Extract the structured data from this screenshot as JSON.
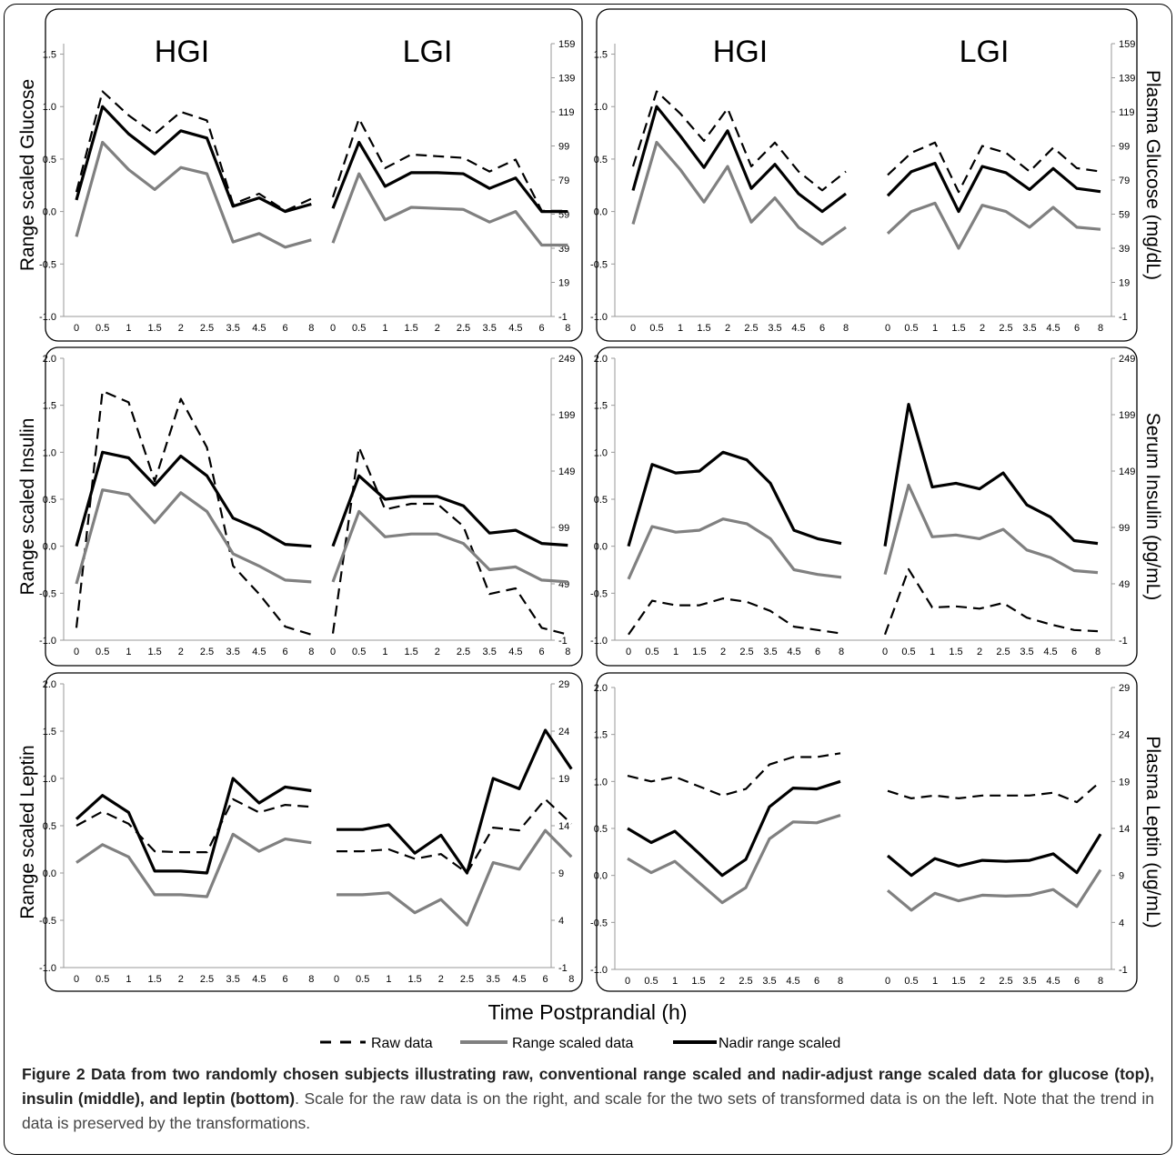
{
  "x_axis_title": "Time Postprandial (h)",
  "legend": [
    {
      "label": "Raw data",
      "style": "dashed",
      "color": "#000000"
    },
    {
      "label": "Range scaled data",
      "style": "solid",
      "color": "#808080"
    },
    {
      "label": "Nadir range scaled",
      "style": "solid",
      "color": "#000000"
    }
  ],
  "caption": {
    "bold": "Figure 2 Data from two randomly chosen subjects illustrating raw, conventional range scaled and nadir-adjust range scaled data for glucose (top), insulin (middle), and leptin (bottom)",
    "text": ". Scale for the raw data is on the right, and scale for the two sets of transformed data is on the left. Note that the trend in data is preserved by the transformations."
  },
  "colors": {
    "raw": "#000000",
    "range": "#808080",
    "nadir": "#000000"
  },
  "chart_data": [
    {
      "type": "line",
      "id": "glucose-subject-1",
      "group_titles": [
        "HGI",
        "LGI"
      ],
      "ylabel_left": "Range scaled Glucose",
      "ylabel_right": "",
      "groups_x": [
        "0",
        "0.5",
        "1",
        "1.5",
        "2",
        "2.5",
        "3.5",
        "4.5",
        "6",
        "8"
      ],
      "left_axis": {
        "ticks": [
          "-1.0",
          "-0.5",
          "0.0",
          "0.5",
          "1.0",
          "1.5"
        ],
        "range": [
          -1.0,
          1.6
        ]
      },
      "right_axis": {
        "ticks": [
          "-1",
          "19",
          "39",
          "59",
          "79",
          "99",
          "119",
          "139",
          "159"
        ],
        "range": [
          -1,
          159
        ]
      },
      "series": [
        {
          "name": "Raw data",
          "axis": "right",
          "groups": [
            [
              72,
              131,
              117,
              106,
              119,
              114,
              65,
              71,
              61,
              68
            ],
            [
              69,
              115,
              86,
              94,
              93,
              92,
              84,
              91,
              61,
              61
            ]
          ]
        },
        {
          "name": "Range scaled data",
          "axis": "left",
          "groups": [
            [
              -0.24,
              0.66,
              0.4,
              0.21,
              0.42,
              0.36,
              -0.29,
              -0.21,
              -0.34,
              -0.27
            ],
            [
              -0.3,
              0.36,
              -0.08,
              0.04,
              0.03,
              0.02,
              -0.1,
              0.0,
              -0.32,
              -0.32
            ]
          ]
        },
        {
          "name": "Nadir range scaled",
          "axis": "left",
          "groups": [
            [
              0.11,
              1.0,
              0.74,
              0.55,
              0.77,
              0.7,
              0.05,
              0.13,
              0.0,
              0.07
            ],
            [
              0.03,
              0.66,
              0.24,
              0.37,
              0.37,
              0.36,
              0.22,
              0.32,
              0.0,
              0.0
            ]
          ]
        }
      ]
    },
    {
      "type": "line",
      "id": "glucose-subject-2",
      "group_titles": [
        "HGI",
        "LGI"
      ],
      "ylabel_left": "",
      "ylabel_right": "Plasma Glucose (mg/dL)",
      "groups_x": [
        "0",
        "0.5",
        "1",
        "1.5",
        "2",
        "2.5",
        "3.5",
        "4.5",
        "6",
        "8"
      ],
      "left_axis": {
        "ticks": [
          "-1.0",
          "-0.5",
          "0.0",
          "0.5",
          "1.0",
          "1.5"
        ],
        "range": [
          -1.0,
          1.6
        ]
      },
      "right_axis": {
        "ticks": [
          "-1",
          "19",
          "39",
          "59",
          "79",
          "99",
          "119",
          "139",
          "159"
        ],
        "range": [
          -1,
          159
        ]
      },
      "series": [
        {
          "name": "Raw data",
          "axis": "right",
          "groups": [
            [
              87,
              131,
              118,
              102,
              121,
              87,
              101,
              84,
              73,
              84
            ],
            [
              82,
              95,
              101,
              72,
              99,
              95,
              84,
              98,
              86,
              84
            ]
          ]
        },
        {
          "name": "Range scaled data",
          "axis": "left",
          "groups": [
            [
              -0.12,
              0.66,
              0.4,
              0.09,
              0.43,
              -0.1,
              0.13,
              -0.15,
              -0.31,
              -0.15
            ],
            [
              -0.21,
              0.0,
              0.08,
              -0.35,
              0.06,
              0.0,
              -0.15,
              0.04,
              -0.15,
              -0.17
            ]
          ]
        },
        {
          "name": "Nadir range scaled",
          "axis": "left",
          "groups": [
            [
              0.2,
              1.0,
              0.72,
              0.42,
              0.77,
              0.22,
              0.45,
              0.17,
              0.0,
              0.17
            ],
            [
              0.15,
              0.38,
              0.46,
              0.0,
              0.43,
              0.37,
              0.21,
              0.41,
              0.22,
              0.19
            ]
          ]
        }
      ]
    },
    {
      "type": "line",
      "id": "insulin-subject-1",
      "group_titles": [],
      "ylabel_left": "Range scaled Insulin",
      "ylabel_right": "",
      "groups_x": [
        "0",
        "0.5",
        "1",
        "1.5",
        "2",
        "2.5",
        "3.5",
        "4.5",
        "6",
        "8"
      ],
      "left_axis": {
        "ticks": [
          "-1.0",
          "-0.5",
          "0.0",
          "0.5",
          "1.0",
          "1.5",
          "2.0"
        ],
        "range": [
          -1.0,
          2.0
        ]
      },
      "right_axis": {
        "ticks": [
          "-1",
          "49",
          "99",
          "149",
          "199",
          "249"
        ],
        "range": [
          -1,
          249
        ]
      },
      "series": [
        {
          "name": "Raw data",
          "axis": "right",
          "groups": [
            [
              10,
              220,
              210,
              140,
              213,
              170,
              65,
              40,
              11,
              4
            ],
            [
              5,
              170,
              115,
              120,
              120,
              100,
              40,
              45,
              10,
              4
            ]
          ]
        },
        {
          "name": "Range scaled data",
          "axis": "left",
          "groups": [
            [
              -0.4,
              0.6,
              0.55,
              0.25,
              0.57,
              0.37,
              -0.08,
              -0.21,
              -0.36,
              -0.38
            ],
            [
              -0.38,
              0.37,
              0.1,
              0.13,
              0.13,
              0.03,
              -0.25,
              -0.22,
              -0.36,
              -0.38
            ]
          ]
        },
        {
          "name": "Nadir range scaled",
          "axis": "left",
          "groups": [
            [
              0.0,
              1.0,
              0.94,
              0.65,
              0.96,
              0.75,
              0.3,
              0.18,
              0.02,
              0.0
            ],
            [
              0.0,
              0.75,
              0.5,
              0.53,
              0.53,
              0.43,
              0.14,
              0.17,
              0.03,
              0.01
            ]
          ]
        }
      ]
    },
    {
      "type": "line",
      "id": "insulin-subject-2",
      "group_titles": [],
      "ylabel_left": "",
      "ylabel_right": "Serum Insulin (pg/mL)",
      "groups_x": [
        "0",
        "0.5",
        "1",
        "1.5",
        "2",
        "2.5",
        "3.5",
        "4.5",
        "6",
        "8"
      ],
      "left_axis": {
        "ticks": [
          "-1.0",
          "-0.5",
          "0.0",
          "0.5",
          "1.0",
          "1.5",
          "2.0"
        ],
        "range": [
          -1.0,
          2.0
        ]
      },
      "right_axis": {
        "ticks": [
          "-1",
          "49",
          "99",
          "149",
          "199",
          "249"
        ],
        "range": [
          -1,
          249
        ]
      },
      "series": [
        {
          "name": "Raw data",
          "axis": "right",
          "groups": [
            [
              4,
              34,
              30,
              30,
              36,
              33,
              25,
              11,
              8,
              5
            ],
            [
              4,
              62,
              28,
              29,
              27,
              32,
              19,
              13,
              8,
              7
            ]
          ]
        },
        {
          "name": "Range scaled data",
          "axis": "left",
          "groups": [
            [
              -0.35,
              0.21,
              0.15,
              0.17,
              0.29,
              0.24,
              0.08,
              -0.25,
              -0.3,
              -0.33
            ],
            [
              -0.3,
              0.65,
              0.1,
              0.12,
              0.08,
              0.18,
              -0.04,
              -0.12,
              -0.26,
              -0.28
            ]
          ]
        },
        {
          "name": "Nadir range scaled",
          "axis": "left",
          "groups": [
            [
              0.0,
              0.87,
              0.78,
              0.8,
              1.0,
              0.92,
              0.67,
              0.17,
              0.08,
              0.03
            ],
            [
              0.0,
              1.51,
              0.63,
              0.67,
              0.61,
              0.78,
              0.44,
              0.31,
              0.06,
              0.03
            ]
          ]
        }
      ]
    },
    {
      "type": "line",
      "id": "leptin-subject-1",
      "group_titles": [],
      "ylabel_left": "Range scaled Leptin",
      "ylabel_right": "",
      "groups_x": [
        "0",
        "0.5",
        "1",
        "1.5",
        "2",
        "2.5",
        "3.5",
        "4.5",
        "6",
        "8"
      ],
      "left_axis": {
        "ticks": [
          "-1.0",
          "-0.5",
          "0.0",
          "0.5",
          "1.0",
          "1.5",
          "2.0"
        ],
        "range": [
          -1.0,
          2.0
        ]
      },
      "right_axis": {
        "ticks": [
          "-1",
          "4",
          "9",
          "14",
          "19",
          "24",
          "29"
        ],
        "range": [
          -1,
          29
        ]
      },
      "series": [
        {
          "name": "Raw data",
          "axis": "right",
          "groups": [
            [
              14,
              15.5,
              14.2,
              11.3,
              11.2,
              11.2,
              16.8,
              15.4,
              16.2,
              16.0
            ],
            [
              11.3,
              11.3,
              11.5,
              10.5,
              11.0,
              9.0,
              13.8,
              13.5,
              16.8,
              14.2
            ]
          ]
        },
        {
          "name": "Range scaled data",
          "axis": "left",
          "groups": [
            [
              0.11,
              0.3,
              0.17,
              -0.23,
              -0.23,
              -0.25,
              0.41,
              0.23,
              0.36,
              0.32
            ],
            [
              -0.23,
              -0.23,
              -0.21,
              -0.42,
              -0.28,
              -0.55,
              0.11,
              0.04,
              0.45,
              0.17
            ]
          ]
        },
        {
          "name": "Nadir range scaled",
          "axis": "left",
          "groups": [
            [
              0.57,
              0.82,
              0.64,
              0.02,
              0.02,
              0.0,
              1.0,
              0.74,
              0.91,
              0.87
            ],
            [
              0.46,
              0.46,
              0.51,
              0.21,
              0.4,
              0.0,
              1.0,
              0.89,
              1.51,
              1.1
            ]
          ]
        }
      ]
    },
    {
      "type": "line",
      "id": "leptin-subject-2",
      "group_titles": [],
      "ylabel_left": "",
      "ylabel_right": "Plasma Leptin (ug/mL)",
      "groups_x": [
        "0",
        "0.5",
        "1",
        "1.5",
        "2",
        "2.5",
        "3.5",
        "4.5",
        "6",
        "8"
      ],
      "left_axis": {
        "ticks": [
          "-1.0",
          "-0.5",
          "0.0",
          "0.5",
          "1.0",
          "1.5",
          "2.0"
        ],
        "range": [
          -1.0,
          2.0
        ]
      },
      "right_axis": {
        "ticks": [
          "-1",
          "4",
          "9",
          "14",
          "19",
          "24",
          "29"
        ],
        "range": [
          -1,
          29
        ]
      },
      "series": [
        {
          "name": "Raw data",
          "axis": "right",
          "groups": [
            [
              19.6,
              19,
              19.5,
              18.5,
              17.5,
              18.2,
              20.8,
              21.6,
              21.6,
              22.0
            ],
            [
              18.0,
              17.2,
              17.5,
              17.2,
              17.5,
              17.5,
              17.5,
              17.8,
              16.8,
              19.0
            ]
          ]
        },
        {
          "name": "Range scaled data",
          "axis": "left",
          "groups": [
            [
              0.18,
              0.03,
              0.15,
              -0.07,
              -0.29,
              -0.13,
              0.39,
              0.57,
              0.56,
              0.64
            ],
            [
              -0.16,
              -0.37,
              -0.19,
              -0.27,
              -0.21,
              -0.22,
              -0.21,
              -0.15,
              -0.33,
              0.06
            ]
          ]
        },
        {
          "name": "Nadir range scaled",
          "axis": "left",
          "groups": [
            [
              0.5,
              0.35,
              0.47,
              0.24,
              0.0,
              0.17,
              0.73,
              0.93,
              0.92,
              1.0
            ],
            [
              0.21,
              0.0,
              0.18,
              0.1,
              0.16,
              0.15,
              0.16,
              0.23,
              0.03,
              0.44
            ]
          ]
        }
      ]
    }
  ]
}
